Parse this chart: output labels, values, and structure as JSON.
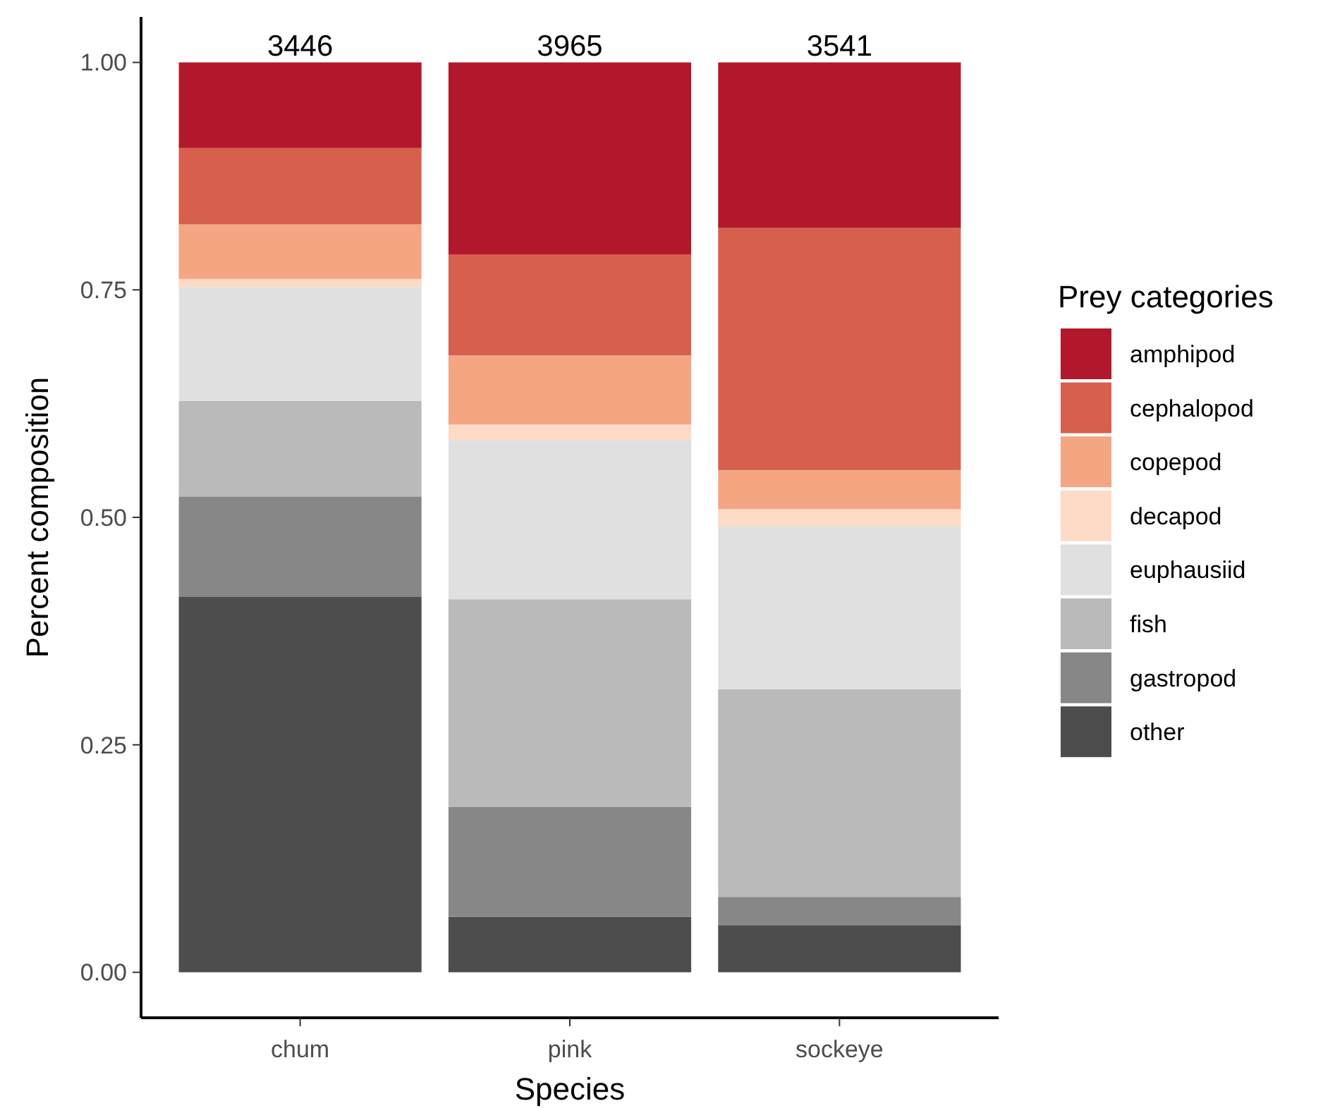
{
  "chart_data": {
    "type": "bar",
    "stacked": true,
    "xlabel": "Species",
    "ylabel": "Percent composition",
    "legend_title": "Prey categories",
    "legend": "right",
    "grid": false,
    "categories": [
      "chum",
      "pink",
      "sockeye"
    ],
    "ylim": [
      -0.05,
      1.05
    ],
    "yticks": [
      {
        "value": 0,
        "label": "0.00"
      },
      {
        "value": 0.25,
        "label": "0.25"
      },
      {
        "value": 0.5,
        "label": "0.50"
      },
      {
        "value": 0.75,
        "label": "0.75"
      },
      {
        "value": 1,
        "label": "1.00"
      }
    ],
    "annotations": [
      {
        "text": "3446",
        "x": "chum",
        "y": 1
      },
      {
        "text": "3965",
        "x": "pink",
        "y": 1
      },
      {
        "text": "3541",
        "x": "sockeye",
        "y": 1
      }
    ],
    "series": [
      {
        "name": "other",
        "color": "#4d4d4d",
        "values": [
          0.413,
          0.061,
          0.052
        ]
      },
      {
        "name": "gastropod",
        "color": "#878787",
        "values": [
          0.11,
          0.121,
          0.031
        ]
      },
      {
        "name": "fish",
        "color": "#bababa",
        "values": [
          0.105,
          0.228,
          0.228
        ]
      },
      {
        "name": "euphausiid",
        "color": "#e0e0e0",
        "values": [
          0.125,
          0.175,
          0.179
        ]
      },
      {
        "name": "decapod",
        "color": "#fddbc7",
        "values": [
          0.009,
          0.017,
          0.019
        ]
      },
      {
        "name": "copepod",
        "color": "#f4a582",
        "values": [
          0.06,
          0.076,
          0.043
        ]
      },
      {
        "name": "cephalopod",
        "color": "#d6604d",
        "values": [
          0.084,
          0.111,
          0.266
        ]
      },
      {
        "name": "amphipod",
        "color": "#b2182b",
        "values": [
          0.094,
          0.211,
          0.182
        ]
      }
    ]
  }
}
